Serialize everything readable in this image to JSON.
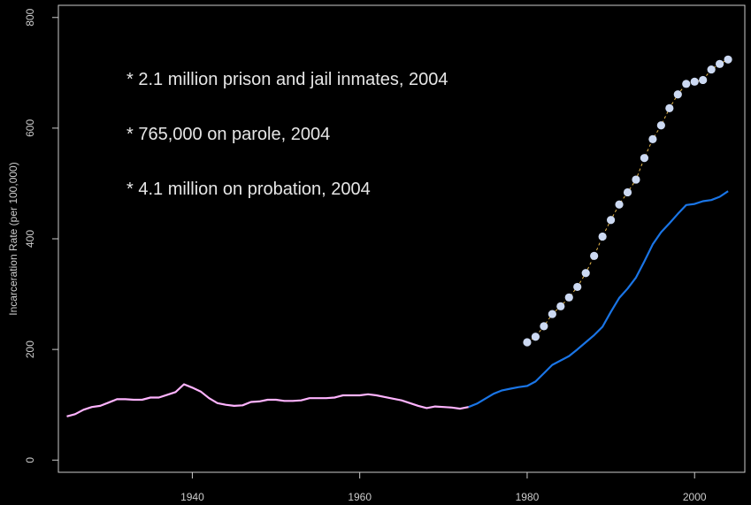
{
  "chart_data": {
    "type": "line",
    "title": "",
    "xlabel": "",
    "ylabel": "Incarceration Rate (per 100,000)",
    "xlim": [
      1924,
      2006
    ],
    "ylim": [
      -22,
      822
    ],
    "x_ticks": [
      1940,
      1960,
      1980,
      2000
    ],
    "y_ticks": [
      0,
      200,
      400,
      600,
      800
    ],
    "grid": false,
    "legend": "none",
    "annotations": [
      "* 2.1 million prison and jail inmates, 2004",
      "* 765,000 on parole, 2004",
      "* 4.1 million on probation, 2004"
    ],
    "series": [
      {
        "style": "line",
        "color": "#ffb3ff",
        "x": [
          1925,
          1926,
          1927,
          1928,
          1929,
          1930,
          1931,
          1932,
          1933,
          1934,
          1935,
          1936,
          1937,
          1938,
          1939,
          1940,
          1941,
          1942,
          1943,
          1944,
          1945,
          1946,
          1947,
          1948,
          1949,
          1950,
          1951,
          1952,
          1953,
          1954,
          1955,
          1956,
          1957,
          1958,
          1959,
          1960,
          1961,
          1962,
          1963,
          1964,
          1965,
          1966,
          1967,
          1968,
          1969,
          1970,
          1971,
          1972,
          1973
        ],
        "values": [
          79,
          83,
          91,
          96,
          98,
          104,
          110,
          110,
          109,
          109,
          113,
          113,
          118,
          123,
          137,
          131,
          124,
          112,
          103,
          100,
          98,
          99,
          105,
          106,
          109,
          109,
          107,
          107,
          108,
          112,
          112,
          112,
          113,
          117,
          117,
          117,
          119,
          117,
          114,
          111,
          108,
          103,
          98,
          94,
          97,
          96,
          95,
          93,
          96
        ]
      },
      {
        "style": "line",
        "color": "#1a75e6",
        "x": [
          1973,
          1974,
          1975,
          1976,
          1977,
          1978,
          1979,
          1980,
          1981,
          1982,
          1983,
          1984,
          1985,
          1986,
          1987,
          1988,
          1989,
          1990,
          1991,
          1992,
          1993,
          1994,
          1995,
          1996,
          1997,
          1998,
          1999,
          2000,
          2001,
          2002,
          2003,
          2004
        ],
        "values": [
          96,
          102,
          111,
          120,
          126,
          129,
          132,
          134,
          142,
          157,
          172,
          180,
          188,
          200,
          213,
          226,
          241,
          268,
          293,
          310,
          330,
          359,
          390,
          412,
          428,
          445,
          461,
          463,
          468,
          470,
          476,
          486
        ]
      },
      {
        "style": "points",
        "color": "#ccd9f2",
        "x": [
          1980,
          1981,
          1982,
          1983,
          1984,
          1985,
          1986,
          1987,
          1988,
          1989,
          1990,
          1991,
          1992,
          1993,
          1994,
          1995,
          1996,
          1997,
          1998,
          1999,
          2000,
          2001,
          2002,
          2003,
          2004
        ],
        "values": [
          213,
          223,
          242,
          264,
          278,
          294,
          313,
          338,
          369,
          404,
          434,
          462,
          484,
          507,
          546,
          580,
          605,
          636,
          661,
          680,
          684,
          687,
          706,
          716,
          724
        ]
      }
    ]
  }
}
